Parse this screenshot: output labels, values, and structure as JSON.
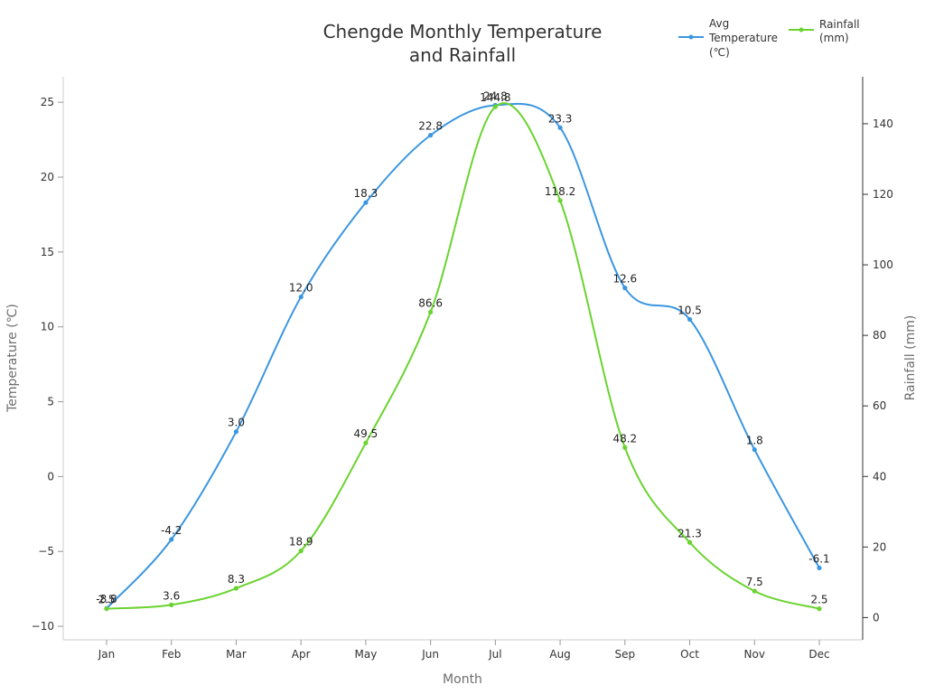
{
  "chart_data": {
    "type": "line",
    "title_lines": [
      "Chengde Monthly Temperature",
      "and Rainfall"
    ],
    "xlabel": "Month",
    "ylabel_left": "Temperature (℃)",
    "ylabel_right": "Rainfall (mm)",
    "categories": [
      "Jan",
      "Feb",
      "Mar",
      "Apr",
      "May",
      "Jun",
      "Jul",
      "Aug",
      "Sep",
      "Oct",
      "Nov",
      "Dec"
    ],
    "series": [
      {
        "name": "Avg Temperature (℃)",
        "legend_lines": [
          "Avg",
          "Temperature",
          "(℃)"
        ],
        "axis": "left",
        "color": "#3b96e0",
        "values": [
          -8.8,
          -4.2,
          3.0,
          12.0,
          18.3,
          22.8,
          24.8,
          23.3,
          12.6,
          10.5,
          1.8,
          -6.1
        ],
        "labels": [
          "-8.8",
          "-4.2",
          "3.0",
          "12.0",
          "18.3",
          "22.8",
          "24.8",
          "23.3",
          "12.6",
          "10.5",
          "1.8",
          "-6.1"
        ]
      },
      {
        "name": "Rainfall (mm)",
        "legend_lines": [
          "Rainfall",
          "(mm)"
        ],
        "axis": "right",
        "color": "#6ad330",
        "values": [
          2.5,
          3.6,
          8.3,
          18.9,
          49.5,
          86.6,
          144.8,
          118.2,
          48.2,
          21.3,
          7.5,
          2.5
        ],
        "labels": [
          "2.5",
          "3.6",
          "8.3",
          "18.9",
          "49.5",
          "86.6",
          "144.8",
          "118.2",
          "48.2",
          "21.3",
          "7.5",
          "2.5"
        ]
      }
    ],
    "y_left": {
      "min": -10.9,
      "max": 26.7,
      "ticks": [
        -10,
        -5,
        0,
        5,
        10,
        15,
        20,
        25
      ],
      "tick_labels": [
        "−10",
        "−5",
        "0",
        "5",
        "10",
        "15",
        "20",
        "25"
      ]
    },
    "y_right": {
      "min": -6.3,
      "max": 153.3,
      "ticks": [
        0,
        20,
        40,
        60,
        80,
        100,
        120,
        140
      ],
      "tick_labels": [
        "0",
        "20",
        "40",
        "60",
        "80",
        "100",
        "120",
        "140"
      ]
    },
    "grid": false,
    "legend_position": "top-right",
    "smooth": true
  }
}
